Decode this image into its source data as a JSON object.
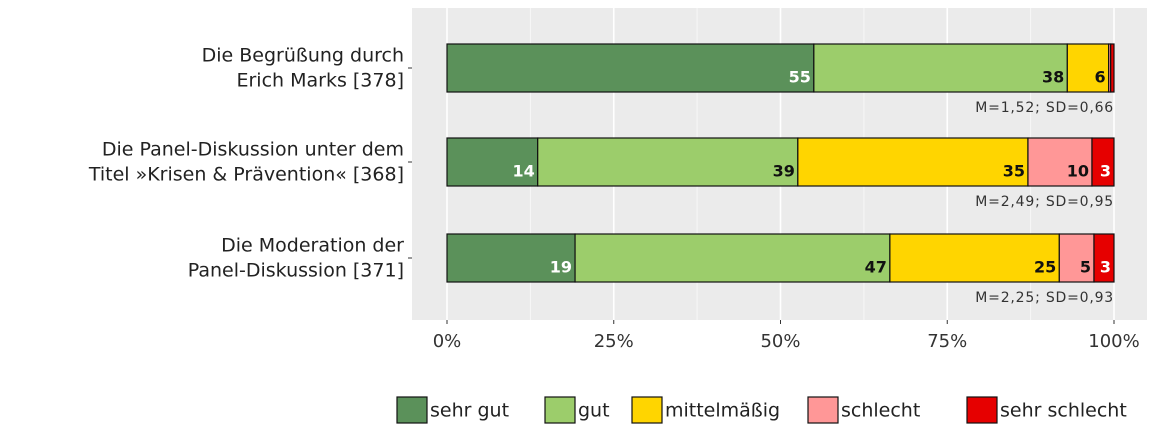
{
  "chart_data": {
    "type": "stacked_barh",
    "categories": [
      "Die Begrüßung durch\nErich Marks [378]",
      "Die Panel-Diskussion unter dem\nTitel »Krisen & Prävention« [368]",
      "Die Moderation der\nPanel-Diskussion [371]"
    ],
    "annotations": [
      "M=1,52; SD=0,66",
      "M=2,49; SD=0,95",
      "M=2,25; SD=0,93"
    ],
    "series": [
      {
        "name": "sehr gut",
        "color": "#5b915a",
        "values": [
          55.0,
          13.6,
          19.2
        ],
        "value_labels": [
          "55",
          "14",
          "19"
        ]
      },
      {
        "name": "gut",
        "color": "#9ccd6b",
        "values": [
          38.0,
          39.0,
          47.2
        ],
        "value_labels": [
          "38",
          "39",
          "47"
        ]
      },
      {
        "name": "mittelmäßig",
        "color": "#ffd500",
        "values": [
          6.2,
          34.5,
          25.4
        ],
        "value_labels": [
          "6",
          "35",
          "25"
        ]
      },
      {
        "name": "schlecht",
        "color": "#ff9797",
        "values": [
          0.3,
          9.6,
          5.2
        ],
        "value_labels": [
          null,
          "10",
          "5"
        ]
      },
      {
        "name": "sehr schlecht",
        "color": "#e60000",
        "values": [
          0.5,
          3.3,
          3.0
        ],
        "value_labels": [
          null,
          "3",
          "3"
        ]
      }
    ],
    "xlim": [
      0,
      100
    ],
    "xticks": [
      {
        "value": 0,
        "label": "0%"
      },
      {
        "value": 25,
        "label": "25%"
      },
      {
        "value": 50,
        "label": "50%"
      },
      {
        "value": 75,
        "label": "75%"
      },
      {
        "value": 100,
        "label": "100%"
      }
    ],
    "grid": true,
    "legend": "bottom"
  }
}
